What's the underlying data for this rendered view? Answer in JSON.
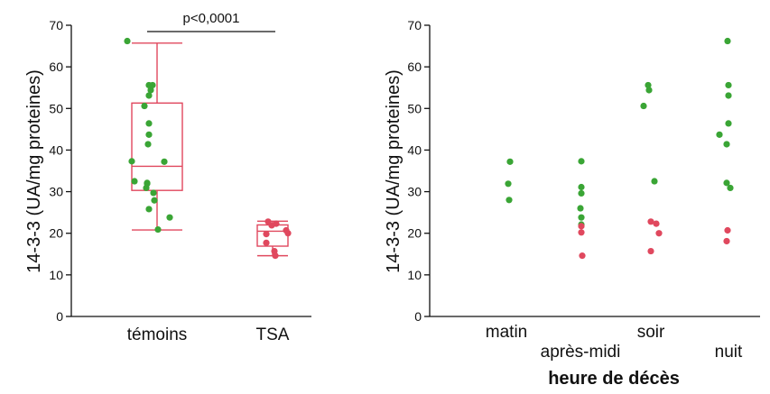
{
  "colors": {
    "temoins": "#3aa535",
    "tsa": "#e0485e",
    "box": "#e0485e",
    "axis": "#111111"
  },
  "chart_data": [
    {
      "type": "scatter",
      "subtype": "box-plot-with-points",
      "ylabel": "14-3-3 (UA/mg proteines)",
      "xlabel": "",
      "ylim": [
        0,
        70
      ],
      "yticks": [
        0,
        10,
        20,
        30,
        40,
        50,
        60,
        70
      ],
      "grid": false,
      "categories": [
        "témoins",
        "TSA"
      ],
      "boxes": [
        {
          "category": "témoins",
          "min": 20.8,
          "q1": 30.3,
          "median": 36.1,
          "q3": 51.3,
          "max": 65.7
        },
        {
          "category": "TSA",
          "min": 14.6,
          "q1": 16.9,
          "median": 20.5,
          "q3": 22.0,
          "max": 22.9
        }
      ],
      "series": [
        {
          "category": "témoins",
          "color_key": "temoins",
          "points": [
            66.2,
            55.6,
            55.6,
            54.4,
            53.1,
            50.6,
            46.4,
            43.7,
            41.4,
            37.3,
            37.2,
            32.5,
            32.1,
            31.9,
            30.9,
            29.7,
            27.9,
            25.8,
            23.8,
            20.9
          ]
        },
        {
          "category": "TSA",
          "color_key": "tsa",
          "points": [
            22.8,
            22.3,
            21.9,
            20.7,
            20.0,
            19.8,
            17.7,
            15.7,
            14.6
          ]
        }
      ],
      "annotation": "p<0,0001"
    },
    {
      "type": "scatter",
      "ylabel": "14-3-3 (UA/mg proteines)",
      "xlabel": "heure de décès",
      "ylim": [
        0,
        70
      ],
      "yticks": [
        0,
        10,
        20,
        30,
        40,
        50,
        60,
        70
      ],
      "grid": false,
      "categories": [
        "matin",
        "après-midi",
        "soir",
        "nuit"
      ],
      "series": [
        {
          "category": "matin",
          "green": [
            37.2,
            31.9,
            28.0
          ],
          "red": []
        },
        {
          "category": "après-midi",
          "green": [
            37.3,
            31.1,
            29.6,
            26.0,
            23.8,
            22.1
          ],
          "red": [
            21.7,
            20.2,
            14.6
          ]
        },
        {
          "category": "soir",
          "green": [
            55.6,
            54.4,
            50.6,
            32.5
          ],
          "red": [
            22.8,
            22.3,
            20.0,
            15.7
          ]
        },
        {
          "category": "nuit",
          "green": [
            66.2,
            55.6,
            53.1,
            46.4,
            43.7,
            41.4,
            32.1,
            30.9
          ],
          "red": [
            20.7,
            18.1
          ]
        }
      ]
    }
  ]
}
